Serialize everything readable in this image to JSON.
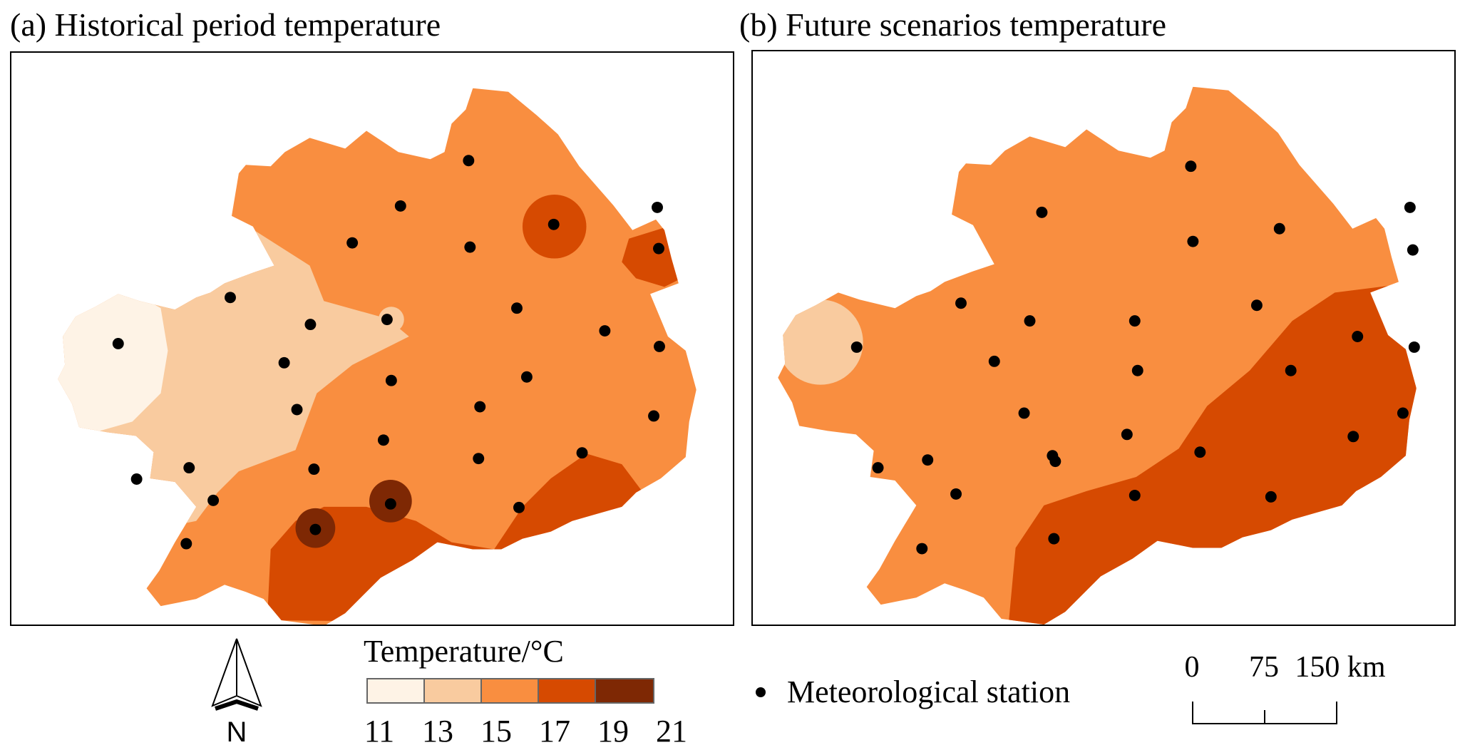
{
  "panel_a": {
    "title": "(a) Historical period temperature"
  },
  "panel_b": {
    "title": "(b) Future scenarios temperature"
  },
  "legend": {
    "title": "Temperature/°C",
    "classes": [
      {
        "from": 11,
        "to": 13,
        "color": "#fef3e6"
      },
      {
        "from": 13,
        "to": 15,
        "color": "#f9cb9f"
      },
      {
        "from": 15,
        "to": 17,
        "color": "#f98e40"
      },
      {
        "from": 17,
        "to": 19,
        "color": "#d64a01"
      },
      {
        "from": 19,
        "to": 21,
        "color": "#7e2804"
      }
    ],
    "tick_labels": [
      "11",
      "13",
      "15",
      "17",
      "19",
      "21"
    ]
  },
  "north_arrow": {
    "label": "N"
  },
  "station_legend": {
    "label": "Meteorological station"
  },
  "scale_bar": {
    "labels": [
      "0",
      "75",
      "150 km"
    ]
  }
}
